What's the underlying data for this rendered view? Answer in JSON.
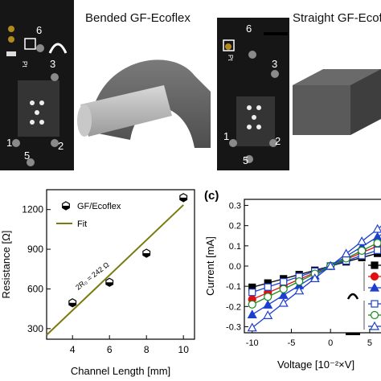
{
  "photos": {
    "bended": {
      "title": "Bended GF-Ecoflex",
      "pad_numbers": [
        "6",
        "3",
        "1",
        "5",
        "2"
      ],
      "pad_mark": "Pt"
    },
    "straight": {
      "title": "Straight GF-Ecofl",
      "pad_numbers": [
        "6",
        "3",
        "1",
        "5",
        "2"
      ],
      "pad_mark": "Pt"
    }
  },
  "chart_data": [
    {
      "type": "scatter",
      "title": "",
      "xlabel": "Channel Length [mm]",
      "ylabel": "Resistance [Ω]",
      "xlim": [
        2.6,
        10.6
      ],
      "ylim": [
        220,
        1350
      ],
      "xticks": [
        4,
        6,
        8,
        10
      ],
      "yticks": [
        300,
        600,
        900,
        1200
      ],
      "series": [
        {
          "name": "GF/Ecoflex",
          "marker": "half-filled-hexagon",
          "color": "#000000",
          "x": [
            4,
            6,
            8,
            10
          ],
          "y": [
            495,
            650,
            870,
            1290
          ]
        },
        {
          "name": "Fit",
          "kind": "line",
          "color": "#7a7a10",
          "x": [
            2.6,
            10.0
          ],
          "y": [
            252,
            1235
          ]
        }
      ],
      "legend_position": "top-left",
      "annotation": "2R₀ = 242 Ω"
    },
    {
      "type": "line",
      "panel_label": "(c)",
      "xlabel": "Voltage [10⁻²×V]",
      "ylabel": "Current [mA]",
      "xlim": [
        -11,
        8.5
      ],
      "ylim": [
        -0.33,
        0.33
      ],
      "xticks": [
        -10,
        -5,
        0,
        5
      ],
      "yticks": [
        -0.3,
        -0.2,
        -0.1,
        0.0,
        0.1,
        0.2,
        0.3
      ],
      "series": [
        {
          "color": "#000000",
          "marker": "square-filled",
          "x": [
            -10,
            -8,
            -6,
            -4,
            -2,
            0,
            2,
            4,
            6,
            8
          ],
          "y": [
            -0.105,
            -0.084,
            -0.063,
            -0.042,
            -0.021,
            0,
            0.021,
            0.042,
            0.063,
            0.084
          ]
        },
        {
          "color": "#e01010",
          "marker": "circle-filled",
          "x": [
            -10,
            -8,
            -6,
            -4,
            -2,
            0,
            2,
            4,
            6,
            8
          ],
          "y": [
            -0.165,
            -0.132,
            -0.099,
            -0.066,
            -0.033,
            0,
            0.033,
            0.066,
            0.099,
            0.132
          ]
        },
        {
          "color": "#1c3fd0",
          "marker": "triangle-filled",
          "x": [
            -10,
            -8,
            -6,
            -4,
            -2,
            0,
            2,
            4,
            6,
            8
          ],
          "y": [
            -0.24,
            -0.192,
            -0.144,
            -0.096,
            -0.048,
            0,
            0.048,
            0.096,
            0.144,
            0.192
          ]
        },
        {
          "color": "#1c3fd0",
          "marker": "square-open",
          "x": [
            -10,
            -8,
            -6,
            -4,
            -2,
            0,
            2,
            4,
            6,
            8
          ],
          "y": [
            -0.13,
            -0.104,
            -0.078,
            -0.052,
            -0.026,
            0,
            0.026,
            0.052,
            0.078,
            0.104
          ]
        },
        {
          "color": "#1a8a1a",
          "marker": "circle-open",
          "x": [
            -10,
            -8,
            -6,
            -4,
            -2,
            0,
            2,
            4,
            6,
            8
          ],
          "y": [
            -0.19,
            -0.152,
            -0.114,
            -0.076,
            -0.038,
            0,
            0.038,
            0.076,
            0.114,
            0.152
          ]
        },
        {
          "color": "#1c3fd0",
          "marker": "triangle-open",
          "x": [
            -10,
            -8,
            -6,
            -4,
            -2,
            0,
            2,
            4,
            6,
            8
          ],
          "y": [
            -0.305,
            -0.244,
            -0.183,
            -0.122,
            -0.061,
            0,
            0.061,
            0.122,
            0.183,
            0.244
          ]
        }
      ],
      "legend_position": "right",
      "legend_groups": [
        "bended",
        "straight"
      ]
    }
  ]
}
